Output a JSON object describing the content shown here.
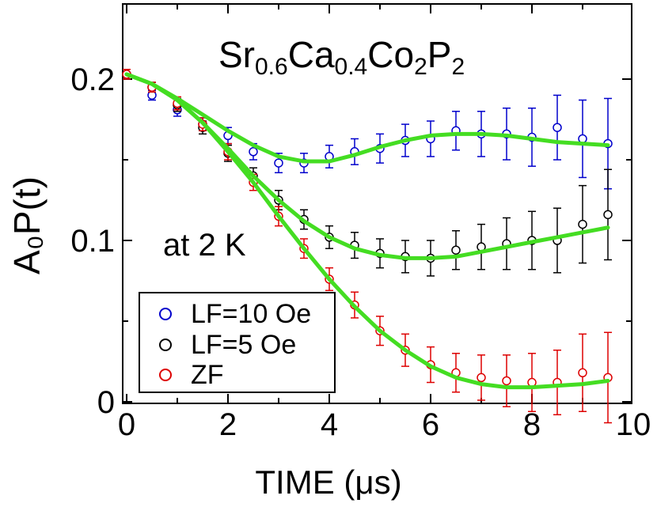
{
  "chart_data": {
    "type": "scatter",
    "title": "Sr0.6Ca0.4Co2P2",
    "title_parts": {
      "a": "Sr",
      "b": "0.6",
      "c": "Ca",
      "d": "0.4",
      "e": "Co",
      "f": "2",
      "g": "P",
      "h": "2"
    },
    "annotation": "at 2 K",
    "xlabel": "TIME (μs)",
    "ylabel": "A₀P(t)",
    "xlim": [
      0,
      10
    ],
    "ylim": [
      0,
      0.25
    ],
    "xticks": [
      "0",
      "2",
      "4",
      "6",
      "8",
      "10"
    ],
    "yticks": [
      "0",
      "0.1",
      "0.2"
    ],
    "legend_position": "bottom-left",
    "series": [
      {
        "name": "LF=10 Oe",
        "color": "#0000cc",
        "x": [
          0,
          0.5,
          1,
          1.5,
          2,
          2.5,
          3,
          3.5,
          4,
          4.5,
          5,
          5.5,
          6,
          6.5,
          7,
          7.5,
          8,
          8.5,
          9,
          9.5
        ],
        "y": [
          0.203,
          0.19,
          0.181,
          0.172,
          0.165,
          0.155,
          0.148,
          0.148,
          0.152,
          0.155,
          0.157,
          0.162,
          0.163,
          0.168,
          0.166,
          0.166,
          0.164,
          0.17,
          0.163,
          0.16
        ],
        "err": [
          0.003,
          0.003,
          0.004,
          0.004,
          0.005,
          0.005,
          0.006,
          0.006,
          0.007,
          0.008,
          0.009,
          0.01,
          0.011,
          0.012,
          0.014,
          0.016,
          0.018,
          0.02,
          0.024,
          0.028
        ],
        "fit_x": [
          0,
          0.5,
          1,
          1.5,
          2,
          2.5,
          3,
          3.5,
          4,
          4.5,
          5,
          5.5,
          6,
          6.5,
          7,
          7.5,
          8,
          8.5,
          9,
          9.5
        ],
        "fit_y": [
          0.203,
          0.197,
          0.188,
          0.178,
          0.168,
          0.159,
          0.152,
          0.149,
          0.149,
          0.153,
          0.158,
          0.162,
          0.165,
          0.166,
          0.166,
          0.165,
          0.163,
          0.161,
          0.16,
          0.159
        ]
      },
      {
        "name": "LF=5 Oe",
        "color": "#000000",
        "x": [
          0,
          0.5,
          1,
          1.5,
          2,
          2.5,
          3,
          3.5,
          4,
          4.5,
          5,
          5.5,
          6,
          6.5,
          7,
          7.5,
          8,
          8.5,
          9,
          9.5
        ],
        "y": [
          0.203,
          0.195,
          0.184,
          0.17,
          0.154,
          0.14,
          0.125,
          0.113,
          0.102,
          0.097,
          0.092,
          0.09,
          0.089,
          0.094,
          0.096,
          0.098,
          0.1,
          0.1,
          0.11,
          0.116
        ],
        "err": [
          0.003,
          0.003,
          0.004,
          0.004,
          0.005,
          0.005,
          0.006,
          0.006,
          0.007,
          0.008,
          0.009,
          0.01,
          0.011,
          0.012,
          0.014,
          0.016,
          0.018,
          0.02,
          0.024,
          0.028
        ],
        "fit_x": [
          0,
          0.5,
          1,
          1.5,
          2,
          2.5,
          3,
          3.5,
          4,
          4.5,
          5,
          5.5,
          6,
          6.5,
          7,
          7.5,
          8,
          8.5,
          9,
          9.5
        ],
        "fit_y": [
          0.203,
          0.197,
          0.187,
          0.173,
          0.157,
          0.14,
          0.125,
          0.112,
          0.102,
          0.095,
          0.091,
          0.089,
          0.089,
          0.09,
          0.093,
          0.096,
          0.099,
          0.102,
          0.105,
          0.108
        ]
      },
      {
        "name": "ZF",
        "color": "#dd0000",
        "x": [
          0,
          0.5,
          1,
          1.5,
          2,
          2.5,
          3,
          3.5,
          4,
          4.5,
          5,
          5.5,
          6,
          6.5,
          7,
          7.5,
          8,
          8.5,
          9,
          9.5
        ],
        "y": [
          0.203,
          0.195,
          0.185,
          0.172,
          0.155,
          0.136,
          0.115,
          0.095,
          0.076,
          0.06,
          0.044,
          0.032,
          0.023,
          0.018,
          0.015,
          0.013,
          0.012,
          0.012,
          0.018,
          0.015
        ],
        "err": [
          0.003,
          0.003,
          0.004,
          0.004,
          0.005,
          0.005,
          0.006,
          0.006,
          0.007,
          0.008,
          0.009,
          0.01,
          0.011,
          0.012,
          0.014,
          0.016,
          0.018,
          0.02,
          0.024,
          0.028
        ],
        "fit_x": [
          0,
          0.5,
          1,
          1.5,
          2,
          2.5,
          3,
          3.5,
          4,
          4.5,
          5,
          5.5,
          6,
          6.5,
          7,
          7.5,
          8,
          8.5,
          9,
          9.5
        ],
        "fit_y": [
          0.203,
          0.197,
          0.187,
          0.173,
          0.155,
          0.136,
          0.115,
          0.095,
          0.076,
          0.059,
          0.044,
          0.032,
          0.022,
          0.015,
          0.011,
          0.009,
          0.009,
          0.01,
          0.011,
          0.013
        ]
      }
    ],
    "fit_color": "#44dd22"
  }
}
